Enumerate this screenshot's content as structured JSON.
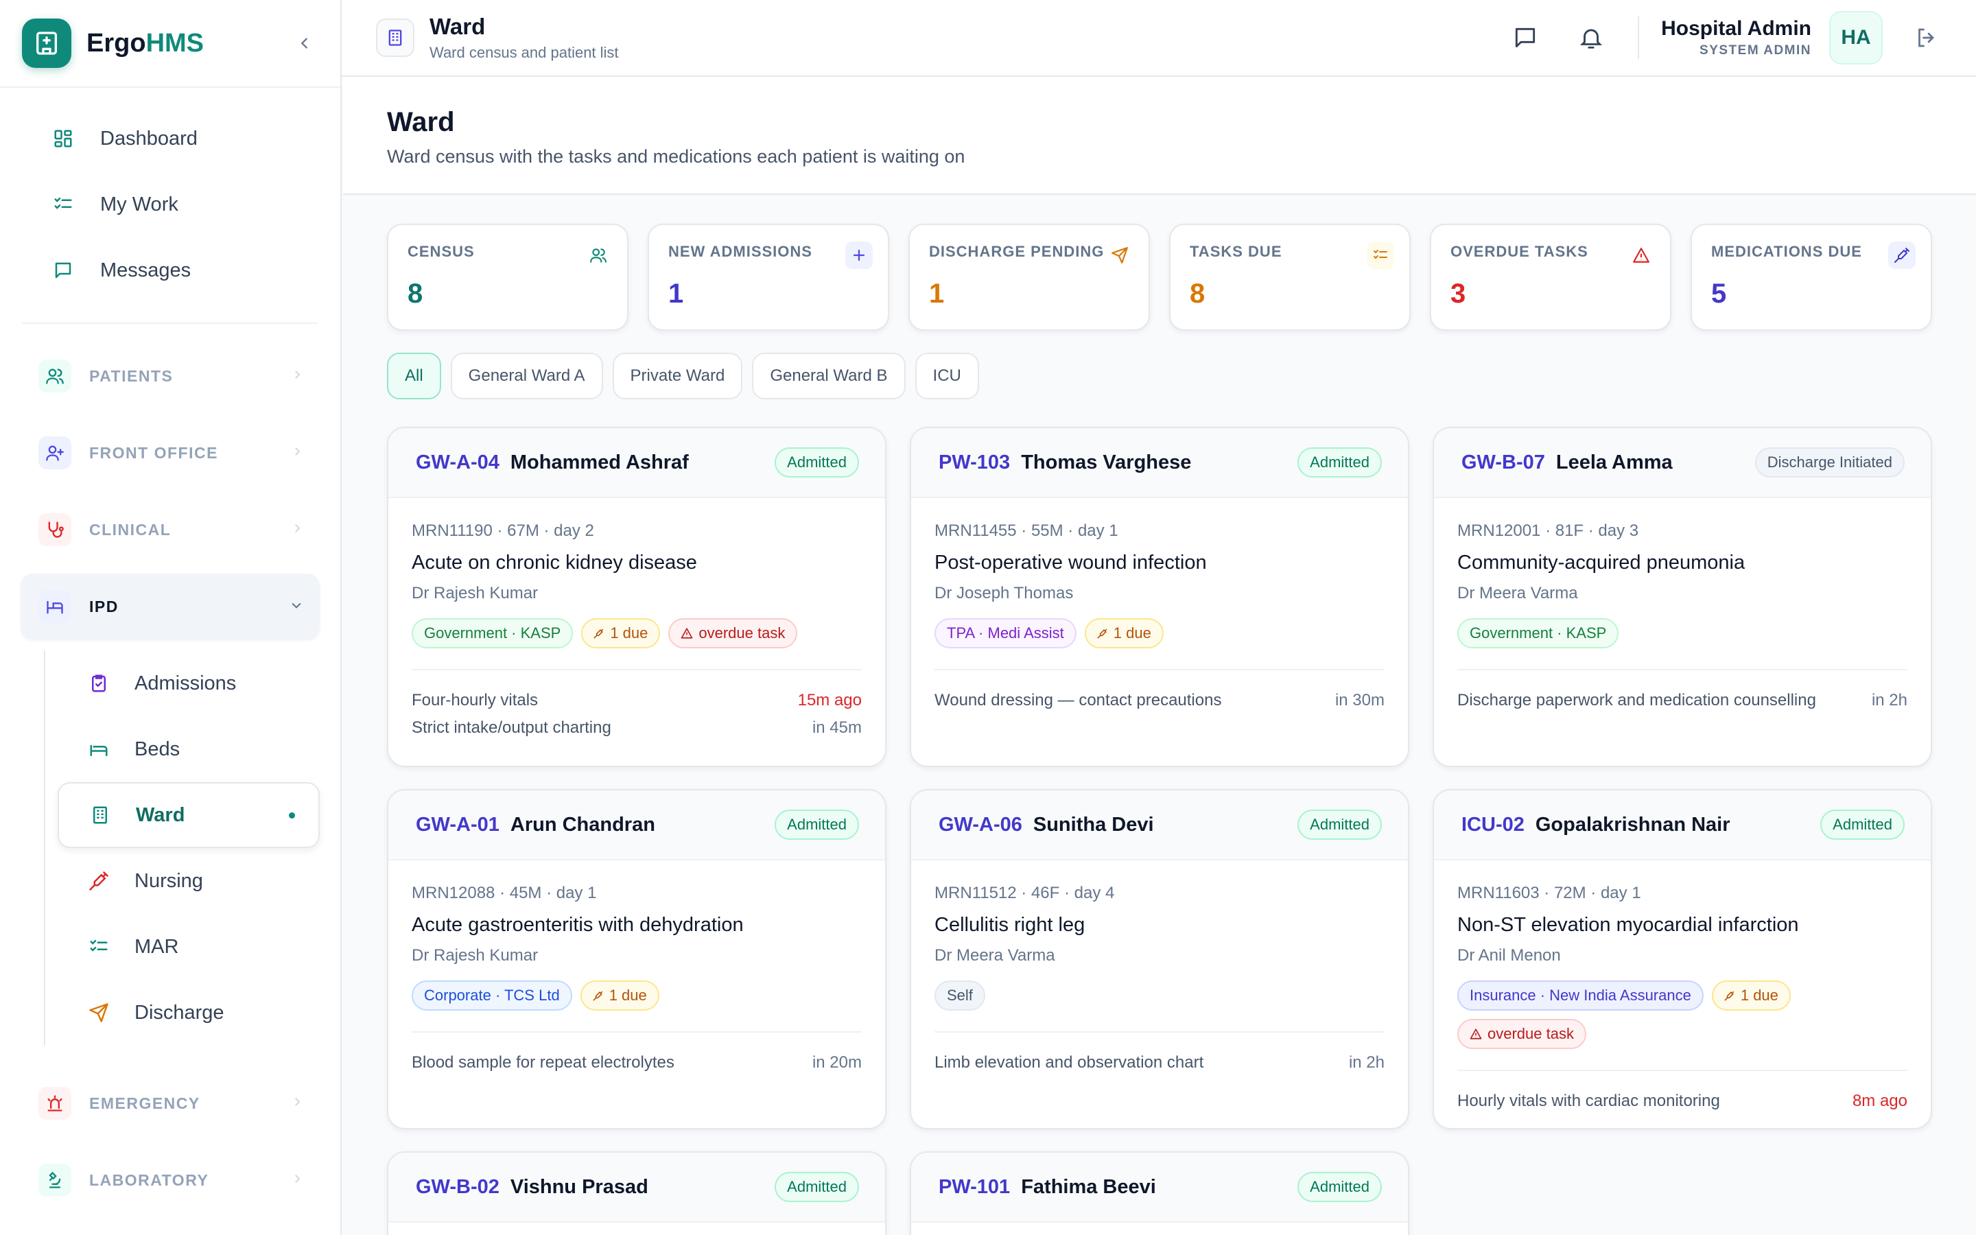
{
  "brand": {
    "name_a": "Ergo",
    "name_b": "HMS"
  },
  "sidebar": {
    "top": [
      {
        "label": "Dashboard",
        "icon": "grid-icon"
      },
      {
        "label": "My Work",
        "icon": "checklist-icon"
      },
      {
        "label": "Messages",
        "icon": "message-icon"
      }
    ],
    "groups": {
      "patients": "PATIENTS",
      "front_office": "FRONT OFFICE",
      "clinical": "CLINICAL",
      "ipd": "IPD",
      "emergency": "EMERGENCY",
      "laboratory": "LABORATORY"
    },
    "ipd_items": [
      {
        "label": "Admissions"
      },
      {
        "label": "Beds"
      },
      {
        "label": "Ward"
      },
      {
        "label": "Nursing"
      },
      {
        "label": "MAR"
      },
      {
        "label": "Discharge"
      }
    ]
  },
  "topbar": {
    "title": "Ward",
    "subtitle": "Ward census and patient list",
    "user_name": "Hospital Admin",
    "user_role": "SYSTEM ADMIN",
    "avatar": "HA"
  },
  "page": {
    "title": "Ward",
    "subtitle": "Ward census with the tasks and medications each patient is waiting on"
  },
  "stats": [
    {
      "label": "CENSUS",
      "value": "8",
      "color": "#0f766e"
    },
    {
      "label": "NEW ADMISSIONS",
      "value": "1",
      "color": "#4338ca"
    },
    {
      "label": "DISCHARGE PENDING",
      "value": "1",
      "color": "#d97706"
    },
    {
      "label": "TASKS DUE",
      "value": "8",
      "color": "#d97706"
    },
    {
      "label": "OVERDUE TASKS",
      "value": "3",
      "color": "#dc2626"
    },
    {
      "label": "MEDICATIONS DUE",
      "value": "5",
      "color": "#4338ca"
    }
  ],
  "filters": [
    "All",
    "General Ward A",
    "Private Ward",
    "General Ward B",
    "ICU"
  ],
  "patients": [
    {
      "bed": "GW-A-04",
      "name": "Mohammed Ashraf",
      "status": "Admitted",
      "mrn": "MRN11190 · 67M · day 2",
      "dx": "Acute on chronic kidney disease",
      "doctor": "Dr Rajesh Kumar",
      "payer": "Government · KASP",
      "due": "1 due",
      "overdue": "overdue task",
      "tasks": [
        {
          "name": "Four-hourly vitals",
          "time": "15m ago"
        },
        {
          "name": "Strict intake/output charting",
          "time": "in 45m"
        }
      ]
    },
    {
      "bed": "PW-103",
      "name": "Thomas Varghese",
      "status": "Admitted",
      "mrn": "MRN11455 · 55M · day 1",
      "dx": "Post-operative wound infection",
      "doctor": "Dr Joseph Thomas",
      "payer": "TPA · Medi Assist",
      "due": "1 due",
      "tasks": [
        {
          "name": "Wound dressing — contact precautions",
          "time": "in 30m"
        }
      ]
    },
    {
      "bed": "GW-B-07",
      "name": "Leela Amma",
      "status": "Discharge Initiated",
      "mrn": "MRN12001 · 81F · day 3",
      "dx": "Community-acquired pneumonia",
      "doctor": "Dr Meera Varma",
      "payer": "Government · KASP",
      "tasks": [
        {
          "name": "Discharge paperwork and medication counselling",
          "time": "in 2h"
        }
      ]
    },
    {
      "bed": "GW-A-01",
      "name": "Arun Chandran",
      "status": "Admitted",
      "mrn": "MRN12088 · 45M · day 1",
      "dx": "Acute gastroenteritis with dehydration",
      "doctor": "Dr Rajesh Kumar",
      "payer": "Corporate · TCS Ltd",
      "due": "1 due",
      "tasks": [
        {
          "name": "Blood sample for repeat electrolytes",
          "time": "in 20m"
        }
      ]
    },
    {
      "bed": "GW-A-06",
      "name": "Sunitha Devi",
      "status": "Admitted",
      "mrn": "MRN11512 · 46F · day 4",
      "dx": "Cellulitis right leg",
      "doctor": "Dr Meera Varma",
      "payer": "Self",
      "tasks": [
        {
          "name": "Limb elevation and observation chart",
          "time": "in 2h"
        }
      ]
    },
    {
      "bed": "ICU-02",
      "name": "Gopalakrishnan Nair",
      "status": "Admitted",
      "mrn": "MRN11603 · 72M · day 1",
      "dx": "Non-ST elevation myocardial infarction",
      "doctor": "Dr Anil Menon",
      "payer": "Insurance · New India Assurance",
      "due": "1 due",
      "overdue": "overdue task",
      "tasks": [
        {
          "name": "Hourly vitals with cardiac monitoring",
          "time": "8m ago"
        }
      ]
    },
    {
      "bed": "GW-B-02",
      "name": "Vishnu Prasad",
      "status": "Admitted"
    },
    {
      "bed": "PW-101",
      "name": "Fathima Beevi",
      "status": "Admitted"
    }
  ]
}
